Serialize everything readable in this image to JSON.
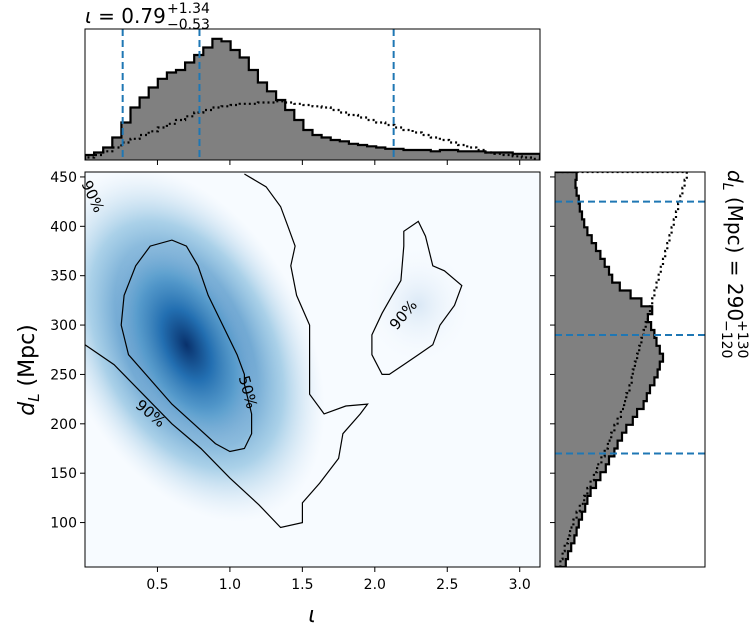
{
  "chart_data": {
    "type": "corner-plot",
    "title_top": {
      "param": "ι",
      "eq": " = ",
      "median": "0.79",
      "plus": "+1.34",
      "minus": "−0.53"
    },
    "title_right": {
      "param": "d",
      "sub": "L",
      "unit": " (Mpc) = ",
      "median": "290",
      "plus": "+130",
      "minus": "−120"
    },
    "xlabel": "ι",
    "ylabel": {
      "main": "d",
      "sub": "L",
      "unit": " (Mpc)"
    },
    "xlim": [
      0.0,
      3.14
    ],
    "ylim": [
      55,
      455
    ],
    "xticks": [
      "0.5",
      "1.0",
      "1.5",
      "2.0",
      "2.5",
      "3.0"
    ],
    "xtick_values": [
      0.5,
      1.0,
      1.5,
      2.0,
      2.5,
      3.0
    ],
    "yticks": [
      "100",
      "150",
      "200",
      "250",
      "300",
      "350",
      "400",
      "450"
    ],
    "ytick_values": [
      100,
      150,
      200,
      250,
      300,
      350,
      400,
      450
    ],
    "iota_quantiles": [
      0.26,
      0.79,
      2.13
    ],
    "dl_quantiles": [
      170,
      290,
      425
    ],
    "contour_labels": [
      "90%",
      "50%",
      "90%",
      "90%"
    ],
    "density_peak": {
      "iota": 0.7,
      "dl": 280
    },
    "colors": {
      "hist_fill": "#808080",
      "quantile": "#1f77b4",
      "contour": "#000000",
      "density": "#08306b"
    },
    "iota_hist_posterior": {
      "bin_edges_start": 0.0,
      "bin_width": 0.0628,
      "heights": [
        0.04,
        0.06,
        0.1,
        0.18,
        0.3,
        0.42,
        0.5,
        0.58,
        0.65,
        0.7,
        0.72,
        0.78,
        0.84,
        0.9,
        0.97,
        0.95,
        0.88,
        0.82,
        0.72,
        0.62,
        0.55,
        0.48,
        0.4,
        0.32,
        0.24,
        0.2,
        0.18,
        0.16,
        0.15,
        0.13,
        0.12,
        0.11,
        0.1,
        0.09,
        0.09,
        0.08,
        0.08,
        0.08,
        0.07,
        0.08,
        0.08,
        0.07,
        0.07,
        0.07,
        0.06,
        0.06,
        0.06,
        0.05,
        0.05,
        0.05
      ]
    },
    "iota_hist_prior": {
      "bin_edges_start": 0.0,
      "bin_width": 0.0628,
      "heights": [
        0.02,
        0.04,
        0.07,
        0.1,
        0.14,
        0.17,
        0.2,
        0.23,
        0.26,
        0.29,
        0.32,
        0.35,
        0.38,
        0.4,
        0.42,
        0.43,
        0.44,
        0.45,
        0.45,
        0.46,
        0.46,
        0.47,
        0.46,
        0.45,
        0.44,
        0.43,
        0.42,
        0.4,
        0.38,
        0.36,
        0.34,
        0.32,
        0.3,
        0.28,
        0.26,
        0.24,
        0.22,
        0.2,
        0.18,
        0.16,
        0.14,
        0.12,
        0.1,
        0.08,
        0.06,
        0.05,
        0.04,
        0.03,
        0.02,
        0.01
      ]
    },
    "dl_hist_posterior": {
      "bin_start": 55,
      "bin_width": 8,
      "heights": [
        0.1,
        0.12,
        0.15,
        0.18,
        0.2,
        0.22,
        0.25,
        0.28,
        0.3,
        0.33,
        0.38,
        0.42,
        0.47,
        0.5,
        0.55,
        0.58,
        0.62,
        0.66,
        0.72,
        0.76,
        0.82,
        0.85,
        0.88,
        0.92,
        0.95,
        0.97,
        1.0,
        0.97,
        0.94,
        0.92,
        0.89,
        0.86,
        0.9,
        0.8,
        0.7,
        0.6,
        0.53,
        0.5,
        0.46,
        0.42,
        0.38,
        0.34,
        0.3,
        0.27,
        0.25,
        0.23,
        0.22,
        0.2,
        0.19,
        0.2
      ]
    },
    "dl_hist_prior": {
      "bin_start": 55,
      "bin_width": 8,
      "heights": [
        0.05,
        0.07,
        0.09,
        0.12,
        0.14,
        0.17,
        0.2,
        0.23,
        0.27,
        0.3,
        0.33,
        0.36,
        0.39,
        0.43,
        0.46,
        0.49,
        0.52,
        0.55,
        0.58,
        0.61,
        0.64,
        0.66,
        0.69,
        0.71,
        0.72,
        0.74,
        0.76,
        0.78,
        0.8,
        0.82,
        0.84,
        0.86,
        0.88,
        0.9,
        0.92,
        0.94,
        0.96,
        0.98,
        1.0,
        1.02,
        1.04,
        1.06,
        1.08,
        1.1,
        1.12,
        1.14,
        1.16,
        1.18,
        1.2,
        1.22
      ]
    },
    "contour90_main": [
      [
        0.0,
        280
      ],
      [
        0.2,
        260
      ],
      [
        0.4,
        230
      ],
      [
        0.6,
        200
      ],
      [
        0.8,
        175
      ],
      [
        1.0,
        145
      ],
      [
        1.2,
        118
      ],
      [
        1.35,
        95
      ],
      [
        1.5,
        100
      ],
      [
        1.5,
        120
      ],
      [
        1.62,
        140
      ],
      [
        1.75,
        165
      ],
      [
        1.78,
        190
      ],
      [
        1.9,
        210
      ],
      [
        1.95,
        220
      ],
      [
        1.8,
        218
      ],
      [
        1.65,
        210
      ],
      [
        1.55,
        230
      ],
      [
        1.55,
        300
      ],
      [
        1.46,
        330
      ],
      [
        1.42,
        360
      ],
      [
        1.45,
        380
      ],
      [
        1.4,
        400
      ],
      [
        1.35,
        420
      ],
      [
        1.25,
        440
      ],
      [
        1.1,
        453
      ]
    ],
    "contour90_island": [
      [
        2.1,
        250
      ],
      [
        2.2,
        260
      ],
      [
        2.3,
        270
      ],
      [
        2.4,
        280
      ],
      [
        2.45,
        300
      ],
      [
        2.55,
        320
      ],
      [
        2.6,
        340
      ],
      [
        2.48,
        355
      ],
      [
        2.4,
        360
      ],
      [
        2.35,
        390
      ],
      [
        2.3,
        405
      ],
      [
        2.2,
        395
      ],
      [
        2.2,
        380
      ],
      [
        2.18,
        345
      ],
      [
        2.12,
        330
      ],
      [
        2.05,
        312
      ],
      [
        1.98,
        290
      ],
      [
        1.98,
        270
      ],
      [
        2.05,
        250
      ],
      [
        2.1,
        250
      ]
    ],
    "contour50": [
      [
        1.1,
        240
      ],
      [
        1.15,
        210
      ],
      [
        1.15,
        190
      ],
      [
        1.1,
        175
      ],
      [
        1.0,
        172
      ],
      [
        0.9,
        180
      ],
      [
        0.75,
        200
      ],
      [
        0.6,
        220
      ],
      [
        0.45,
        245
      ],
      [
        0.3,
        270
      ],
      [
        0.25,
        300
      ],
      [
        0.27,
        330
      ],
      [
        0.35,
        360
      ],
      [
        0.45,
        380
      ],
      [
        0.6,
        386
      ],
      [
        0.7,
        380
      ],
      [
        0.78,
        360
      ],
      [
        0.85,
        330
      ],
      [
        0.95,
        300
      ],
      [
        1.05,
        270
      ],
      [
        1.1,
        250
      ],
      [
        1.1,
        240
      ]
    ]
  }
}
